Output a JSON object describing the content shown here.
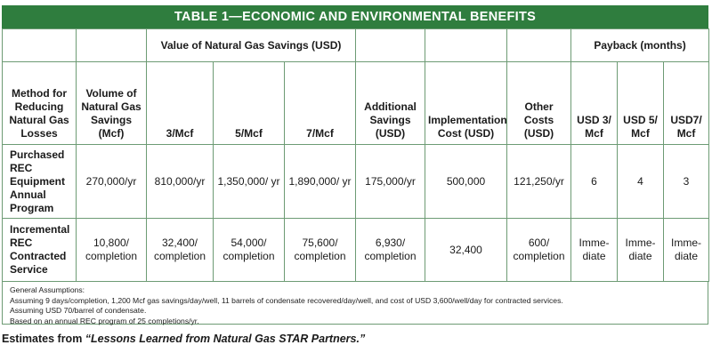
{
  "table": {
    "title": "TABLE 1—ECONOMIC AND ENVIRONMENTAL BENEFITS",
    "group_headers": {
      "value_savings": "Value of Natural Gas Savings (USD)",
      "payback": "Payback (months)"
    },
    "columns": [
      "Method for Reducing Natural Gas Losses",
      "Volume of Natural Gas Savings (Mcf)",
      "3/Mcf",
      "5/Mcf",
      "7/Mcf",
      "Additional Savings (USD)",
      "Implementation Cost (USD)",
      "Other Costs (USD)",
      "USD 3/ Mcf",
      "USD 5/ Mcf",
      "USD7/ Mcf"
    ],
    "rows": [
      {
        "method": "Purchased REC Equipment Annual Program",
        "cells": [
          "270,000/yr",
          "810,000/yr",
          "1,350,000/ yr",
          "1,890,000/ yr",
          "175,000/yr",
          "500,000",
          "121,250/yr",
          "6",
          "4",
          "3"
        ]
      },
      {
        "method": "Incremental REC Contracted Service",
        "cells": [
          "10,800/ completion",
          "32,400/ completion",
          "54,000/ completion",
          "75,600/ completion",
          "6,930/ completion",
          "32,400",
          "600/ completion",
          "Imme- diate",
          "Imme- diate",
          "Imme- diate"
        ]
      }
    ],
    "notes": [
      "General Assumptions:",
      "Assuming 9 days/completion, 1,200 Mcf gas savings/day/well, 11 barrels of condensate recovered/day/well, and cost of USD 3,600/well/day for contracted services.",
      "Assuming USD 70/barrel of condensate.",
      "Based on an annual REC program of 25 completions/yr."
    ]
  },
  "source": {
    "prefix": "Estimates from ",
    "title": "“Lessons Learned from Natural Gas STAR Partners.”"
  },
  "colors": {
    "header_bg": "#2f7d3e",
    "border": "#6d9b74"
  }
}
